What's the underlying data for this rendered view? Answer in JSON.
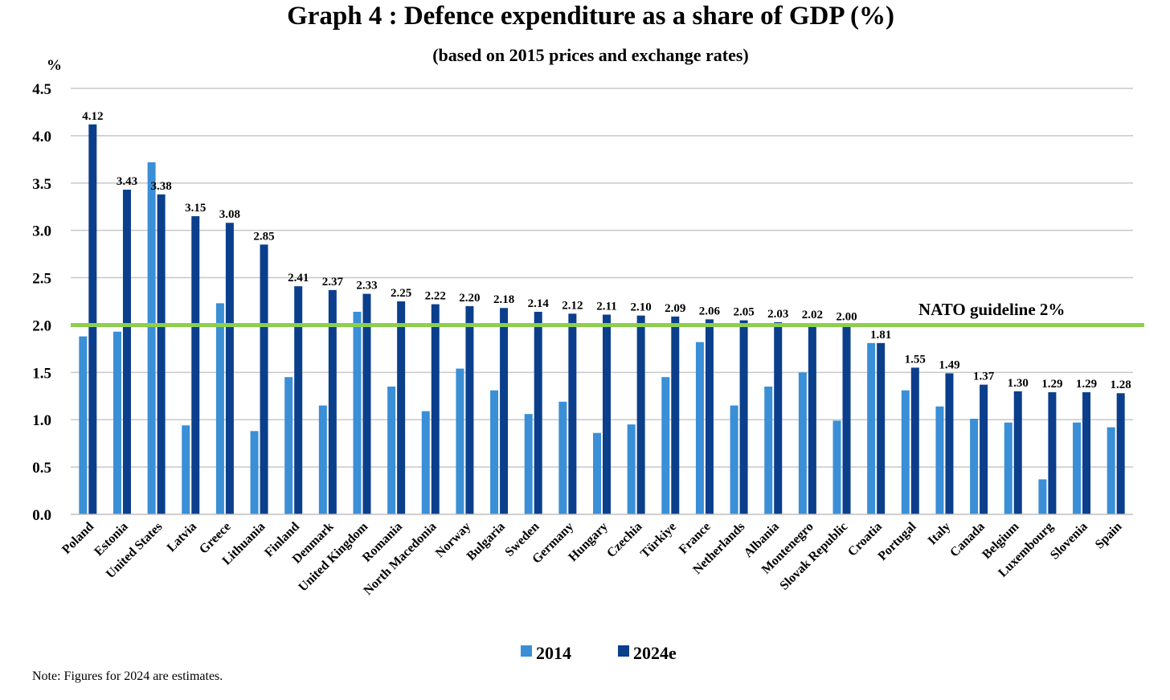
{
  "chart_data": {
    "type": "bar",
    "title": "Graph 4 : Defence expenditure as a share of GDP (%)",
    "subtitle": "(based on 2015 prices and exchange rates)",
    "ylabel": "%",
    "ylim": [
      0,
      4.5
    ],
    "yticks": [
      "0.0",
      "0.5",
      "1.0",
      "1.5",
      "2.0",
      "2.5",
      "3.0",
      "3.5",
      "4.0",
      "4.5"
    ],
    "grid": true,
    "legend": "bottom",
    "categories": [
      "Poland",
      "Estonia",
      "United States",
      "Latvia",
      "Greece",
      "Lithuania",
      "Finland",
      "Denmark",
      "United Kingdom",
      "Romania",
      "North Macedonia",
      "Norway",
      "Bulgaria",
      "Sweden",
      "Germany",
      "Hungary",
      "Czechia",
      "Türkiye",
      "France",
      "Netherlands",
      "Albania",
      "Montenegro",
      "Slovak Republic",
      "Croatia",
      "Portugal",
      "Italy",
      "Canada",
      "Belgium",
      "Luxembourg",
      "Slovenia",
      "Spain"
    ],
    "series": [
      {
        "name": "2014",
        "color": "#3a8fd6",
        "values": [
          1.88,
          1.93,
          3.72,
          0.94,
          2.23,
          0.88,
          1.45,
          1.15,
          2.14,
          1.35,
          1.09,
          1.54,
          1.31,
          1.06,
          1.19,
          0.86,
          0.95,
          1.45,
          1.82,
          1.15,
          1.35,
          1.5,
          0.99,
          1.81,
          1.31,
          1.14,
          1.01,
          0.97,
          0.37,
          0.97,
          0.92
        ],
        "labels": []
      },
      {
        "name": "2024e",
        "color": "#0b3f8c",
        "values": [
          4.12,
          3.43,
          3.38,
          3.15,
          3.08,
          2.85,
          2.41,
          2.37,
          2.33,
          2.25,
          2.22,
          2.2,
          2.18,
          2.14,
          2.12,
          2.11,
          2.1,
          2.09,
          2.06,
          2.05,
          2.03,
          2.02,
          2.0,
          1.81,
          1.55,
          1.49,
          1.37,
          1.3,
          1.29,
          1.29,
          1.28
        ],
        "labels": [
          "4.12",
          "3.43",
          "3.38",
          "3.15",
          "3.08",
          "2.85",
          "2.41",
          "2.37",
          "2.33",
          "2.25",
          "2.22",
          "2.20",
          "2.18",
          "2.14",
          "2.12",
          "2.11",
          "2.10",
          "2.09",
          "2.06",
          "2.05",
          "2.03",
          "2.02",
          "2.00",
          "1.81",
          "1.55",
          "1.49",
          "1.37",
          "1.30",
          "1.29",
          "1.29",
          "1.28"
        ]
      }
    ],
    "reference_line": {
      "value": 2.0,
      "label": "NATO guideline 2%",
      "color": "#8ccf4d"
    },
    "note": "Note: Figures for 2024 are estimates."
  }
}
